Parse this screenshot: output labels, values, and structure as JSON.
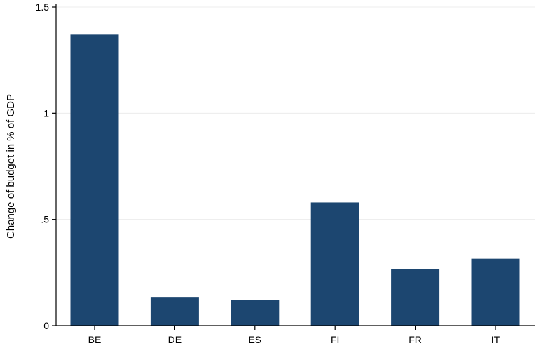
{
  "chart_data": {
    "type": "bar",
    "categories": [
      "BE",
      "DE",
      "ES",
      "FI",
      "FR",
      "IT"
    ],
    "values": [
      1.37,
      0.135,
      0.12,
      0.58,
      0.265,
      0.315
    ],
    "xlabel": "",
    "ylabel": "Change of budget in % of GDP",
    "ylim": [
      0,
      1.5
    ],
    "yticks": [
      0,
      0.5,
      1,
      1.5
    ],
    "ytick_labels": [
      "0",
      ".5",
      "1",
      "1.5"
    ],
    "grid": true,
    "legend": "none",
    "bar_color": "#1c4670"
  }
}
